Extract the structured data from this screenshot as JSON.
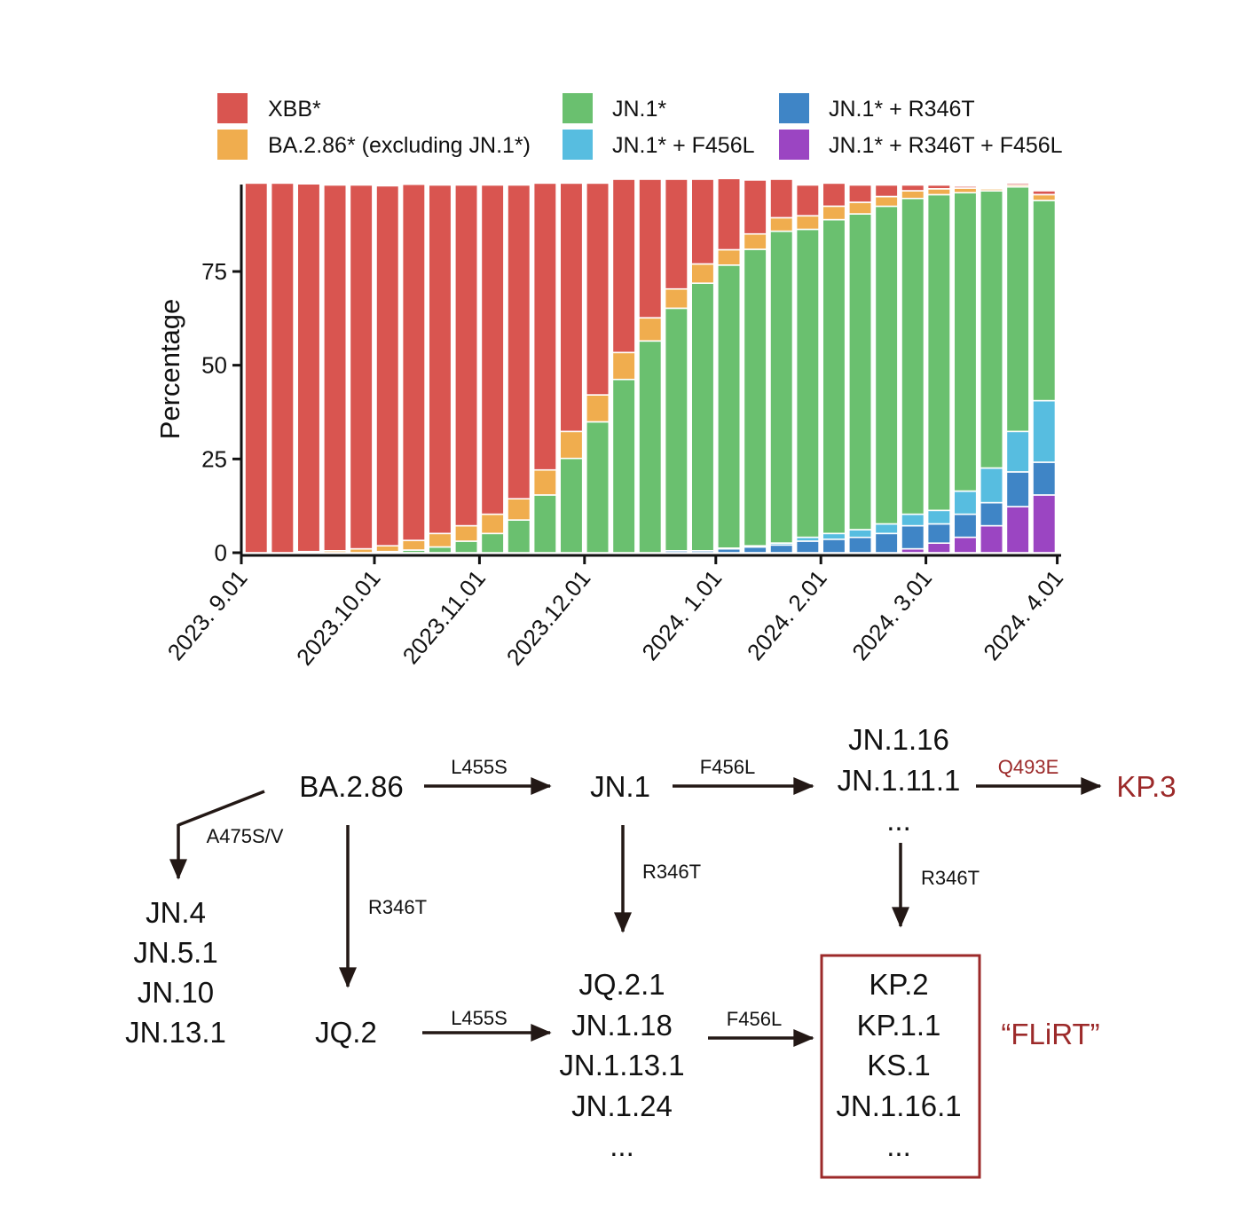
{
  "chart_data": {
    "type": "bar",
    "stacked": true,
    "title": "",
    "xlabel": "",
    "ylabel": "Percentage",
    "ylim": [
      0,
      100
    ],
    "yticks": [
      0,
      25,
      50,
      75
    ],
    "grid": false,
    "legend_position": "top",
    "x_tick_labels": [
      "2023. 9.01",
      "2023.10.01",
      "2023.11.01",
      "2023.12.01",
      "2024. 1.01",
      "2024. 2.01",
      "2024. 3.01",
      "2024. 4.01"
    ],
    "x_tick_after_bar": [
      0,
      4,
      8,
      12,
      17,
      21,
      25,
      30
    ],
    "series": [
      {
        "name": "JN.1* + R346T + F456L",
        "color": "#9b45c2",
        "values": [
          0,
          0,
          0,
          0,
          0,
          0,
          0,
          0,
          0,
          0,
          0,
          0,
          0,
          0,
          0,
          0,
          0,
          0,
          0,
          0,
          0,
          0,
          0,
          0,
          0,
          1,
          2.5,
          4,
          7,
          12,
          15
        ]
      },
      {
        "name": "JN.1* + R346T",
        "color": "#3f85c6",
        "values": [
          0,
          0,
          0,
          0,
          0,
          0,
          0,
          0,
          0,
          0,
          0,
          0,
          0,
          0,
          0,
          0,
          0.5,
          0.5,
          1,
          1.5,
          2,
          3,
          3.5,
          4,
          5,
          6,
          5,
          6,
          6,
          9,
          8.5
        ]
      },
      {
        "name": "JN.1* + F456L",
        "color": "#57bde0",
        "values": [
          0,
          0,
          0,
          0,
          0,
          0,
          0,
          0,
          0,
          0,
          0,
          0,
          0,
          0,
          0,
          0,
          0,
          0,
          0.2,
          0.3,
          0.5,
          1,
          1.5,
          2,
          2.5,
          3,
          3.5,
          6,
          9,
          10.5,
          16
        ]
      },
      {
        "name": "JN.1*",
        "color": "#6ac06f",
        "values": [
          0,
          0,
          0,
          0,
          0,
          0.3,
          0.7,
          1.5,
          3,
          5,
          8.5,
          15,
          24.5,
          34,
          45,
          55,
          63,
          69.5,
          73.5,
          77,
          81,
          80,
          81.5,
          82,
          82.5,
          82,
          82,
          77.5,
          72,
          63.5,
          52
        ]
      },
      {
        "name": "BA.2.86* (excluding JN.1*)",
        "color": "#f0ad4e",
        "values": [
          0,
          0,
          0.3,
          0.5,
          1,
          1.5,
          2.5,
          3.5,
          4,
          5,
          5.5,
          6.5,
          7,
          7,
          7,
          6,
          5,
          5,
          4,
          4,
          3.5,
          3.5,
          3.5,
          3,
          2.5,
          2,
          1.5,
          1.2,
          0.5,
          0.5,
          1.5
        ]
      },
      {
        "name": "XBB*",
        "color": "#d95550",
        "values": [
          96,
          96,
          95.5,
          95,
          94.5,
          93.5,
          92.5,
          90.5,
          88.5,
          85.5,
          81.5,
          74.5,
          64.5,
          55,
          45,
          36,
          28.5,
          22,
          18.5,
          14,
          10,
          8,
          6,
          4.5,
          3,
          1.5,
          1,
          0.5,
          0,
          0.5,
          1
        ]
      }
    ]
  },
  "lineage_diagram": {
    "nodes": {
      "ba286": "BA.2.86",
      "jn1": "JN.1",
      "jn1_16": "JN.1.16",
      "jn1_11_1": "JN.1.11.1",
      "dots_top": "...",
      "kp3": "KP.3",
      "jn4": "JN.4",
      "jn5_1": "JN.5.1",
      "jn10": "JN.10",
      "jn13_1": "JN.13.1",
      "jq2": "JQ.2",
      "jq2_1": "JQ.2.1",
      "jn1_18": "JN.1.18",
      "jn1_13_1": "JN.1.13.1",
      "jn1_24": "JN.1.24",
      "dots_mid": "...",
      "kp2": "KP.2",
      "kp1_1": "KP.1.1",
      "ks1": "KS.1",
      "jn1_16_1": "JN.1.16.1",
      "dots_box": "..."
    },
    "mutations": {
      "m_l455s_top": "L455S",
      "m_f456l_top": "F456L",
      "m_q493e": "Q493E",
      "m_a475": "A475S/V",
      "m_r346t_left": "R346T",
      "m_r346t_mid": "R346T",
      "m_r346t_right": "R346T",
      "m_l455s_bottom": "L455S",
      "m_f456l_bottom": "F456L"
    },
    "flirt_label": "“FLiRT”",
    "accent_color": "#9c2a2a"
  }
}
